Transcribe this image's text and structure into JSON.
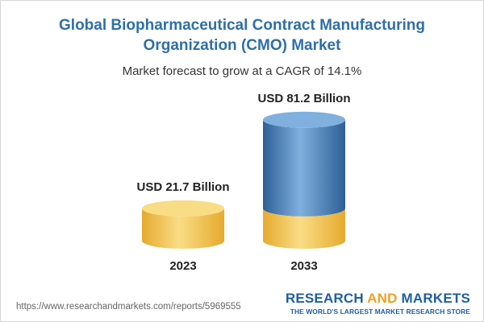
{
  "header": {
    "title": "Global Biopharmaceutical Contract Manufacturing Organization (CMO) Market",
    "subtitle": "Market forecast to grow at a CAGR of 14.1%"
  },
  "chart_data": {
    "type": "bar",
    "style": "3d-cylinder",
    "categories": [
      "2023",
      "2033"
    ],
    "values": [
      21.7,
      81.2
    ],
    "value_labels": [
      "USD 21.7 Billion",
      "USD 81.2 Billion"
    ],
    "unit": "USD Billion",
    "base_segment_value": 21.7,
    "colors": {
      "base": "#f3c54e",
      "base_light": "#f9dd85",
      "base_dark": "#e6aa2e",
      "growth": "#4f86c0",
      "growth_light": "#7fb0de",
      "growth_dark": "#2e5f96"
    },
    "xlabel": "",
    "ylabel": ""
  },
  "footer": {
    "url": "https://www.researchandmarkets.com/reports/5969555",
    "brand_part1": "RESEARCH ",
    "brand_part2": "AND",
    "brand_part3": " MARKETS",
    "tagline": "THE WORLD'S LARGEST MARKET RESEARCH STORE"
  }
}
